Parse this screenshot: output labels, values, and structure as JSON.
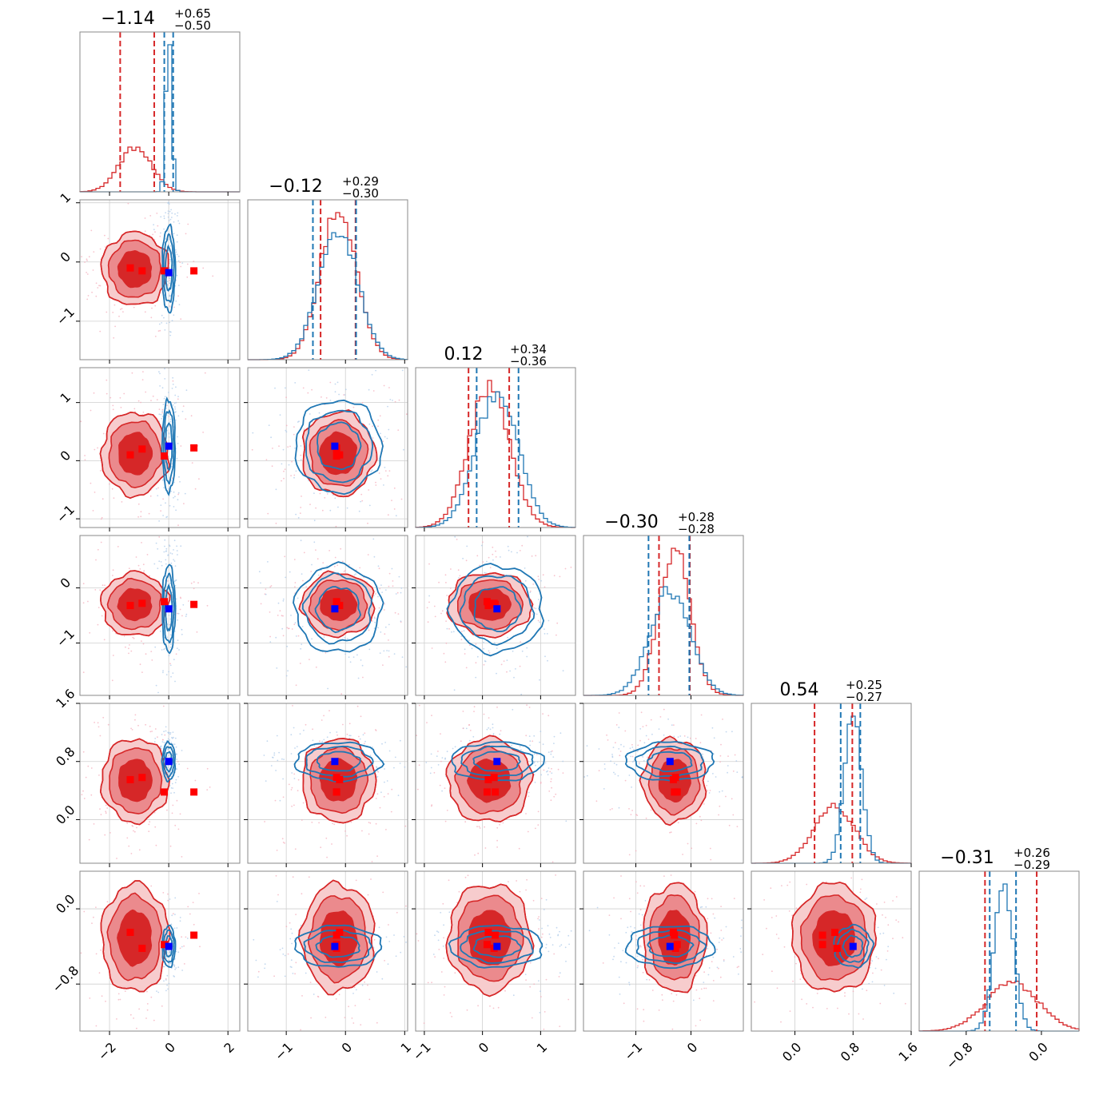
{
  "chart_data": {
    "type": "corner",
    "n_params": 6,
    "colors": {
      "red": "#d62728",
      "blue": "#1f77b4",
      "marker_red": "#ff0000",
      "marker_blue": "#0000ff"
    },
    "grid": true,
    "titles": [
      {
        "value": "−1.14",
        "plus": "+0.65",
        "minus": "−0.50"
      },
      {
        "value": "−0.12",
        "plus": "+0.29",
        "minus": "−0.30"
      },
      {
        "value": "0.12",
        "plus": "+0.34",
        "minus": "−0.36"
      },
      {
        "value": "−0.30",
        "plus": "+0.28",
        "minus": "−0.28"
      },
      {
        "value": "0.54",
        "plus": "+0.25",
        "minus": "−0.27"
      },
      {
        "value": "−0.31",
        "plus": "+0.26",
        "minus": "−0.29"
      }
    ],
    "params": [
      {
        "range": [
          -3.0,
          2.4
        ],
        "ticks": [
          -2,
          0,
          2
        ],
        "tick_labels": [
          "−2",
          "0",
          "2"
        ],
        "red": {
          "mean": -1.14,
          "sd": 0.55,
          "q": [
            -1.64,
            -0.49
          ]
        },
        "blue": {
          "mean": 0.0,
          "sd": 0.1,
          "q": [
            -0.15,
            0.15
          ]
        }
      },
      {
        "range": [
          -1.65,
          1.05
        ],
        "ticks": [
          -1,
          0,
          1
        ],
        "tick_labels": [
          "−1",
          "0",
          "1"
        ],
        "red": {
          "mean": -0.12,
          "sd": 0.3,
          "q": [
            -0.42,
            0.17
          ]
        },
        "blue": {
          "mean": -0.12,
          "sd": 0.33,
          "q": [
            -0.55,
            0.18
          ]
        }
      },
      {
        "range": [
          -1.15,
          1.6
        ],
        "ticks": [
          -1,
          0,
          1
        ],
        "tick_labels": [
          "−1",
          "0",
          "1"
        ],
        "red": {
          "mean": 0.12,
          "sd": 0.35,
          "q": [
            -0.24,
            0.46
          ]
        },
        "blue": {
          "mean": 0.25,
          "sd": 0.36,
          "q": [
            -0.1,
            0.62
          ]
        }
      },
      {
        "range": [
          -1.95,
          0.95
        ],
        "ticks": [
          -1,
          0
        ],
        "tick_labels": [
          "−1",
          "0"
        ],
        "red": {
          "mean": -0.3,
          "sd": 0.28,
          "q": [
            -0.58,
            -0.02
          ]
        },
        "blue": {
          "mean": -0.38,
          "sd": 0.36,
          "q": [
            -0.77,
            -0.03
          ]
        }
      },
      {
        "range": [
          -0.6,
          1.6
        ],
        "ticks": [
          0.0,
          0.8,
          1.6
        ],
        "tick_labels": [
          "0.0",
          "0.8",
          "1.6"
        ],
        "red": {
          "mean": 0.54,
          "sd": 0.28,
          "q": [
            0.27,
            0.79
          ]
        },
        "blue": {
          "mean": 0.8,
          "sd": 0.12,
          "q": [
            0.63,
            0.9
          ]
        }
      },
      {
        "range": [
          -1.3,
          0.4
        ],
        "ticks": [
          -0.8,
          0.0
        ],
        "tick_labels": [
          "−0.8",
          "0.0"
        ],
        "red": {
          "mean": -0.31,
          "sd": 0.28,
          "q": [
            -0.6,
            -0.05
          ]
        },
        "blue": {
          "mean": -0.4,
          "sd": 0.1,
          "q": [
            -0.55,
            -0.27
          ]
        }
      }
    ],
    "truth_markers": {
      "red": [
        [
          -1.3,
          -0.1,
          0.1,
          -0.32,
          0.55,
          -0.25
        ],
        [
          -0.9,
          -0.15,
          0.2,
          -0.28,
          0.58,
          -0.42
        ],
        [
          -0.15,
          -0.15,
          0.08,
          -0.25,
          0.38,
          -0.38
        ],
        [
          0.85,
          -0.15,
          0.22,
          -0.3,
          0.38,
          -0.28
        ]
      ],
      "blue": [
        0.0,
        -0.18,
        0.25,
        -0.38,
        0.8,
        -0.4
      ]
    }
  }
}
